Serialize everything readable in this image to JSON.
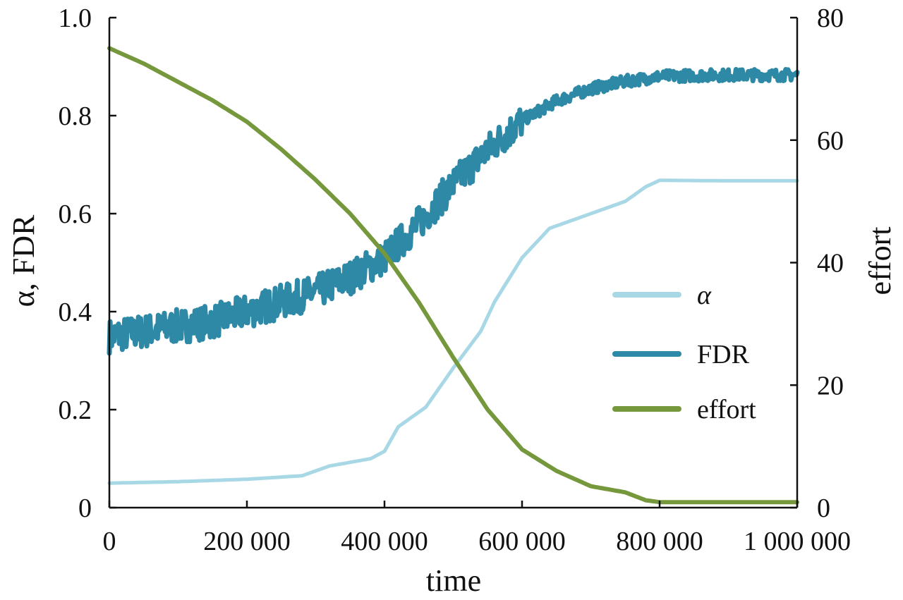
{
  "chart_data": {
    "type": "line",
    "xlabel": "time",
    "ylabel_left": "α, FDR",
    "ylabel_right": "effort",
    "xlim": [
      0,
      1000000
    ],
    "ylim_left": [
      0,
      1.0
    ],
    "ylim_right": [
      0,
      80
    ],
    "x_ticks": [
      0,
      200000,
      400000,
      600000,
      800000,
      1000000
    ],
    "x_tick_labels": [
      "0",
      "200 000",
      "400 000",
      "600 000",
      "800 000",
      "1 000 000"
    ],
    "y_left_ticks": [
      0,
      0.2,
      0.4,
      0.6,
      0.8,
      1.0
    ],
    "y_left_tick_labels": [
      "0",
      "0.2",
      "0.4",
      "0.6",
      "0.8",
      "1.0"
    ],
    "y_right_ticks": [
      0,
      20,
      40,
      60,
      80
    ],
    "y_right_tick_labels": [
      "0",
      "20",
      "40",
      "60",
      "80"
    ],
    "grid": false,
    "legend_position": "right",
    "series": [
      {
        "name": "α",
        "axis": "left",
        "color": "#a8d8e6",
        "x": [
          0,
          100000,
          200000,
          280000,
          320000,
          380000,
          400000,
          420000,
          460000,
          500000,
          540000,
          560000,
          600000,
          640000,
          700000,
          750000,
          780000,
          800000,
          900000,
          1000000
        ],
        "y": [
          0.05,
          0.053,
          0.058,
          0.065,
          0.085,
          0.1,
          0.115,
          0.165,
          0.205,
          0.285,
          0.36,
          0.42,
          0.51,
          0.57,
          0.6,
          0.625,
          0.655,
          0.668,
          0.667,
          0.667
        ]
      },
      {
        "name": "FDR",
        "axis": "left",
        "color": "#2e89a6",
        "x": [
          0,
          50000,
          100000,
          150000,
          200000,
          250000,
          300000,
          350000,
          400000,
          450000,
          500000,
          550000,
          600000,
          650000,
          700000,
          750000,
          800000,
          850000,
          900000,
          950000,
          1000000
        ],
        "y": [
          0.35,
          0.36,
          0.37,
          0.38,
          0.4,
          0.42,
          0.44,
          0.47,
          0.51,
          0.58,
          0.66,
          0.73,
          0.79,
          0.83,
          0.855,
          0.87,
          0.88,
          0.882,
          0.883,
          0.883,
          0.883
        ]
      },
      {
        "name": "effort",
        "axis": "right",
        "color": "#76983c",
        "x": [
          0,
          50000,
          100000,
          150000,
          200000,
          250000,
          300000,
          350000,
          400000,
          450000,
          500000,
          550000,
          600000,
          650000,
          700000,
          750000,
          780000,
          800000,
          900000,
          1000000
        ],
        "y": [
          75,
          72.5,
          69.5,
          66.5,
          63,
          58.5,
          53.5,
          48,
          41.5,
          33.5,
          24.5,
          16,
          9.5,
          6,
          3.5,
          2.5,
          1.2,
          0.9,
          0.9,
          0.9
        ]
      }
    ]
  }
}
